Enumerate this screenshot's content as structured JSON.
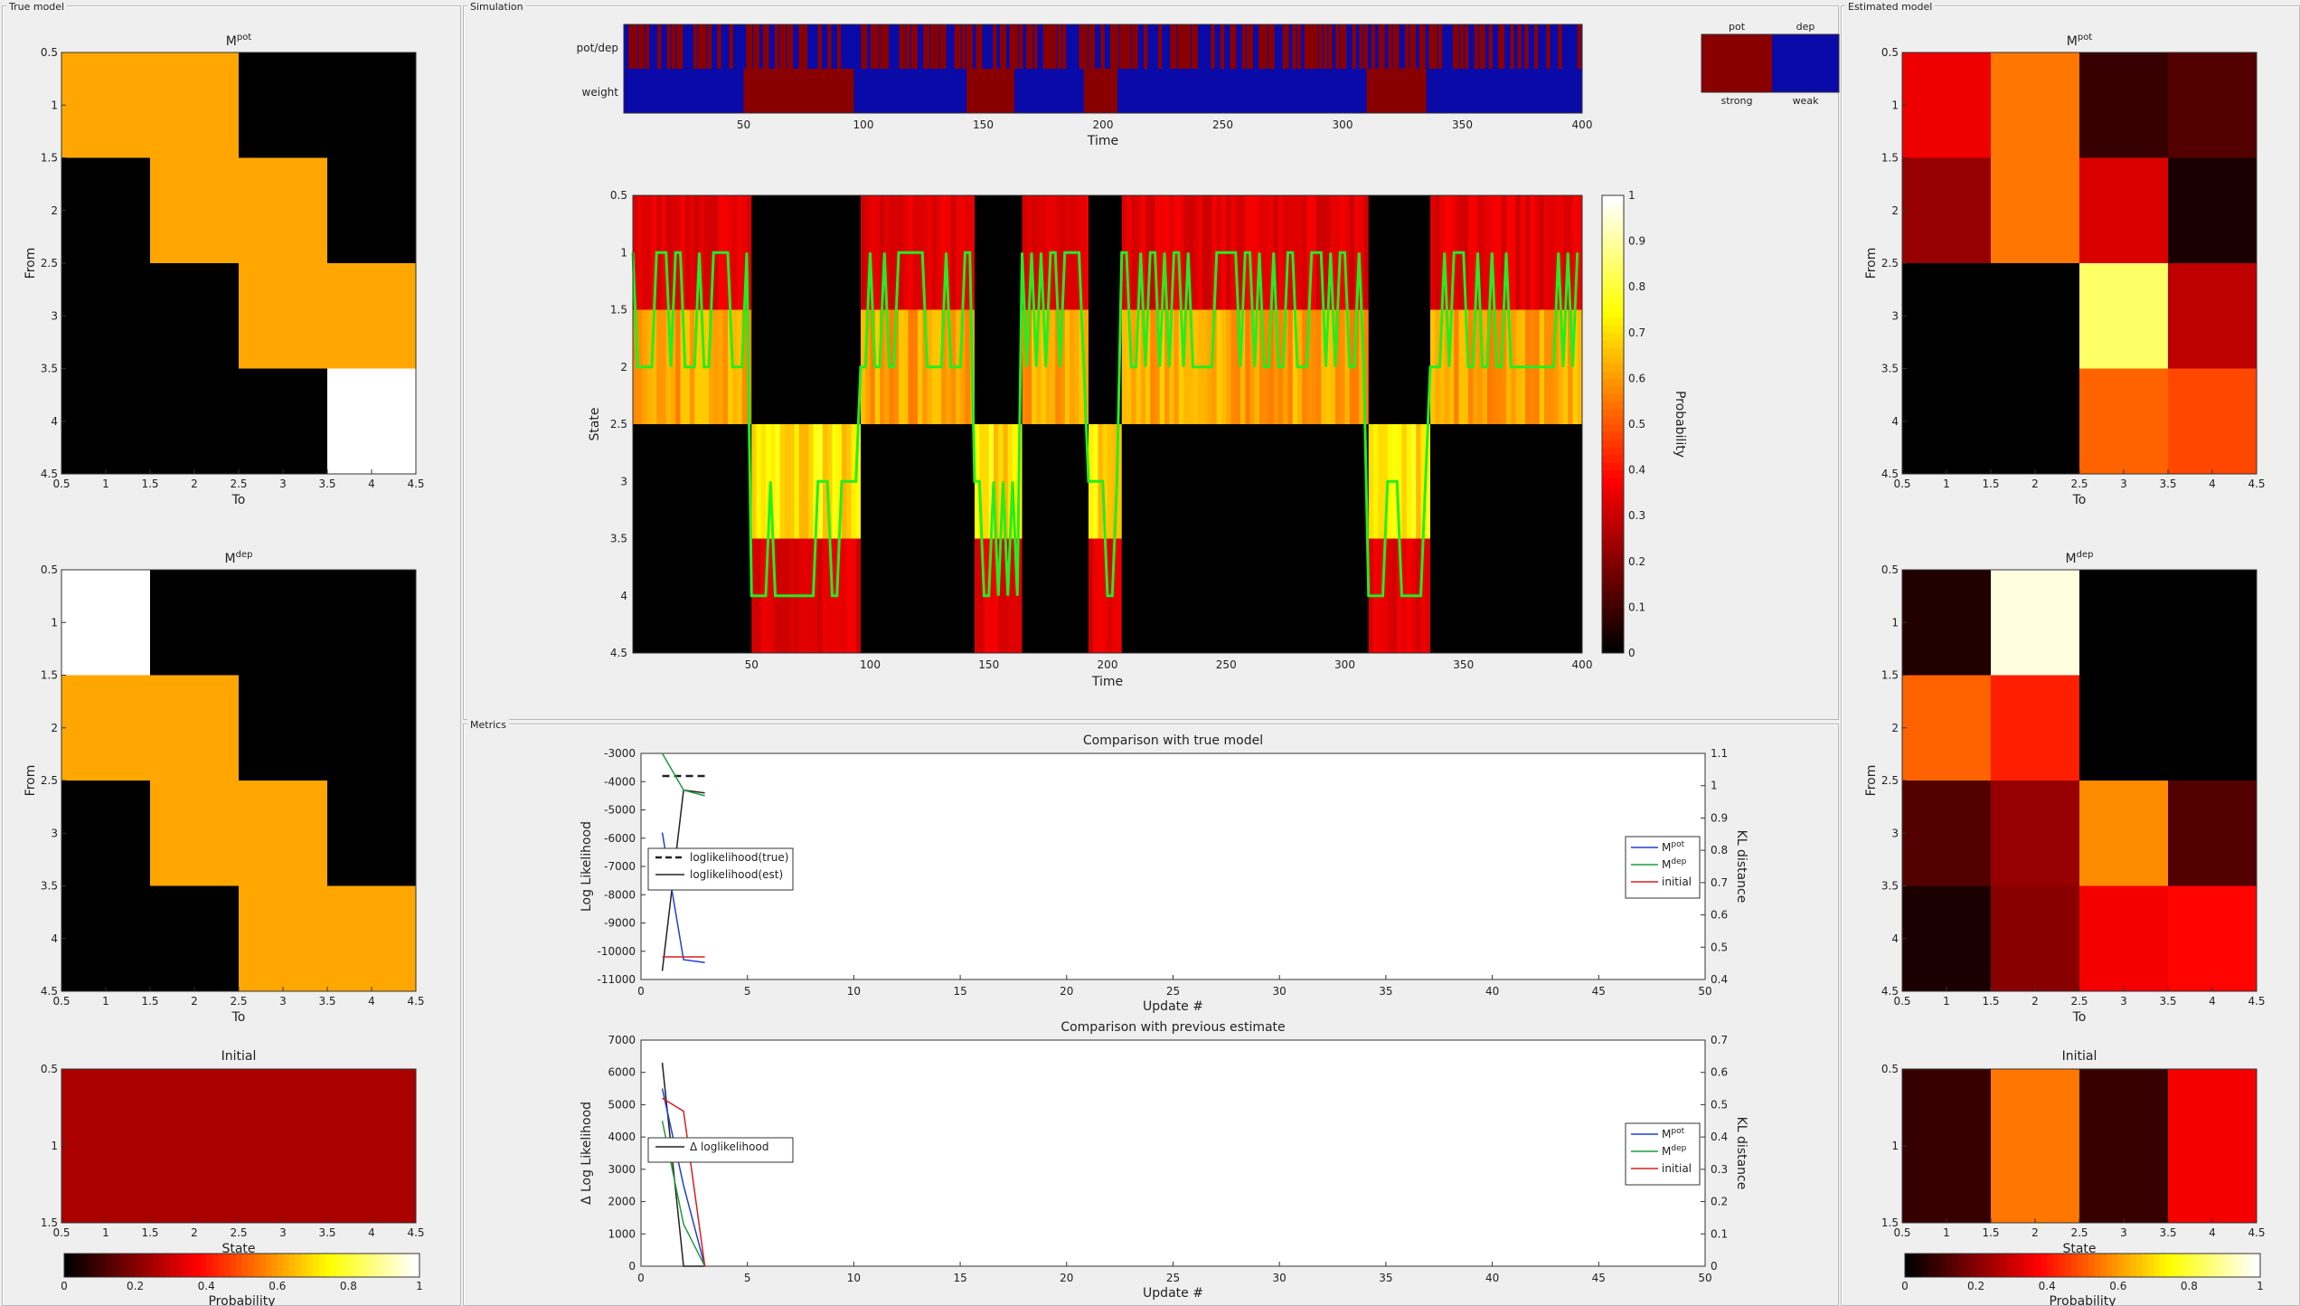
{
  "panels": {
    "true_model": "True model",
    "simulation": "Simulation",
    "metrics": "Metrics",
    "estimated_model": "Estimated model"
  },
  "colors": {
    "frame": "#b9b9b9",
    "bg": "#efefef",
    "weak": "#0a0aa8",
    "strong": "#8a0000",
    "path": "#22ee22"
  },
  "labels": {
    "to": "To",
    "from": "From",
    "state": "State",
    "time": "Time",
    "probability": "Probability",
    "update": "Update #",
    "pot_dep": "pot/dep",
    "weight": "weight",
    "pot": "pot",
    "dep": "dep",
    "strong": "strong",
    "weak": "weak"
  },
  "true_model": {
    "m_pot": {
      "title_base": "M",
      "title_sup": "pot",
      "values": [
        [
          0.62,
          0.62,
          0,
          0
        ],
        [
          0,
          0.62,
          0.62,
          0
        ],
        [
          0,
          0,
          0.62,
          0.62
        ],
        [
          0,
          0,
          0,
          1
        ]
      ]
    },
    "m_dep": {
      "title_base": "M",
      "title_sup": "dep",
      "values": [
        [
          1,
          0,
          0,
          0
        ],
        [
          0.62,
          0.62,
          0,
          0
        ],
        [
          0,
          0.62,
          0.62,
          0
        ],
        [
          0,
          0,
          0.62,
          0.62
        ]
      ]
    },
    "initial": {
      "title": "Initial",
      "values": [
        [
          0.25,
          0.25,
          0.25,
          0.25
        ]
      ]
    }
  },
  "estimated_model": {
    "m_pot": {
      "title_base": "M",
      "title_sup": "pot",
      "values": [
        [
          0.35,
          0.55,
          0.08,
          0.12
        ],
        [
          0.22,
          0.55,
          0.32,
          0.04
        ],
        [
          0,
          0,
          0.85,
          0.28
        ],
        [
          0,
          0,
          0.52,
          0.48
        ]
      ]
    },
    "m_dep": {
      "title_base": "M",
      "title_sup": "dep",
      "values": [
        [
          0.05,
          0.97,
          0,
          0
        ],
        [
          0.52,
          0.42,
          0,
          0
        ],
        [
          0.12,
          0.22,
          0.58,
          0.12
        ],
        [
          0.04,
          0.2,
          0.36,
          0.38
        ]
      ]
    },
    "initial": {
      "title": "Initial",
      "values": [
        [
          0.08,
          0.55,
          0.08,
          0.36
        ]
      ]
    }
  },
  "heatmap_axes": {
    "x_ticks": [
      "0.5",
      "1",
      "1.5",
      "2",
      "2.5",
      "3",
      "3.5",
      "4",
      "4.5"
    ],
    "y_ticks": [
      "0.5",
      "1",
      "1.5",
      "2",
      "2.5",
      "3",
      "3.5",
      "4",
      "4.5"
    ],
    "y_ticks_initial": [
      "0.5",
      "1",
      "1.5"
    ]
  },
  "colorbar": {
    "ticks": [
      "0",
      "0.2",
      "0.4",
      "0.6",
      "0.8",
      "1"
    ],
    "label": "Probability"
  },
  "sim_colorbar": {
    "ticks": [
      "0",
      "0.1",
      "0.2",
      "0.3",
      "0.4",
      "0.5",
      "0.6",
      "0.7",
      "0.8",
      "0.9",
      "1"
    ],
    "label": "Probability"
  },
  "simulation": {
    "time_ticks": [
      "50",
      "100",
      "150",
      "200",
      "250",
      "300",
      "350",
      "400"
    ],
    "state_ticks": [
      "0.5",
      "1",
      "1.5",
      "2",
      "2.5",
      "3",
      "3.5",
      "4",
      "4.5"
    ],
    "plasticity_segments": [
      [
        0,
        50,
        0
      ],
      [
        50,
        96,
        1
      ],
      [
        96,
        109,
        0
      ],
      [
        109,
        143,
        0
      ],
      [
        143,
        163,
        1
      ],
      [
        163,
        192,
        0
      ],
      [
        192,
        206,
        1
      ],
      [
        206,
        310,
        0
      ],
      [
        310,
        335,
        1
      ],
      [
        335,
        400,
        0
      ]
    ],
    "state_segments": [
      [
        0,
        50,
        2
      ],
      [
        50,
        96,
        3
      ],
      [
        96,
        109,
        2
      ],
      [
        109,
        143,
        1
      ],
      [
        143,
        163,
        3
      ],
      [
        163,
        192,
        2
      ],
      [
        192,
        206,
        3
      ],
      [
        206,
        236,
        2
      ],
      [
        236,
        256,
        1
      ],
      [
        256,
        310,
        2
      ],
      [
        310,
        335,
        3
      ],
      [
        335,
        400,
        2
      ]
    ]
  },
  "metrics": {
    "true_model_chart": {
      "title": "Comparison with true model",
      "ylabel_left": "Log Likelihood",
      "ylabel_right": "KL distance",
      "xlabel": "Update #",
      "y_left_ticks": [
        "-3000",
        "-4000",
        "-5000",
        "-6000",
        "-7000",
        "-8000",
        "-9000",
        "-10000",
        "-11000"
      ],
      "y_right_ticks": [
        "1.1",
        "1",
        "0.9",
        "0.8",
        "0.7",
        "0.6",
        "0.5",
        "0.4"
      ],
      "x_ticks": [
        "0",
        "5",
        "10",
        "15",
        "20",
        "25",
        "30",
        "35",
        "40",
        "45",
        "50"
      ],
      "legend_left": [
        "loglikelihood(true)",
        "loglikelihood(est)"
      ],
      "legend_right": [
        {
          "base": "M",
          "sup": "pot"
        },
        {
          "base": "M",
          "sup": "dep"
        },
        {
          "base": "initial",
          "sup": ""
        }
      ]
    },
    "previous_chart": {
      "title": "Comparison with previous estimate",
      "ylabel_left": "Δ Log Likelihood",
      "ylabel_right": "KL distance",
      "xlabel": "Update #",
      "y_left_ticks": [
        "7000",
        "6000",
        "5000",
        "4000",
        "3000",
        "2000",
        "1000",
        "0"
      ],
      "y_right_ticks": [
        "0.7",
        "0.6",
        "0.5",
        "0.4",
        "0.3",
        "0.2",
        "0.1",
        "0"
      ],
      "x_ticks": [
        "0",
        "5",
        "10",
        "15",
        "20",
        "25",
        "30",
        "35",
        "40",
        "45",
        "50"
      ],
      "legend_left": [
        "Δ loglikelihood"
      ],
      "legend_right": [
        {
          "base": "M",
          "sup": "pot"
        },
        {
          "base": "M",
          "sup": "dep"
        },
        {
          "base": "initial",
          "sup": ""
        }
      ]
    }
  },
  "chart_data": [
    {
      "type": "line",
      "title": "Comparison with true model",
      "xlabel": "Update #",
      "ylabel": "Log Likelihood",
      "xlim": [
        0,
        50
      ],
      "ylim": [
        -11000,
        -3000
      ],
      "series": [
        {
          "name": "loglikelihood(true)",
          "axis": "left",
          "x": [
            1,
            2,
            3
          ],
          "y": [
            -3800,
            -3800,
            -3800
          ]
        },
        {
          "name": "loglikelihood(est)",
          "axis": "left",
          "x": [
            1,
            2,
            3
          ],
          "y": [
            -10700,
            -4300,
            -4400
          ]
        },
        {
          "name": "Mpot",
          "axis": "right",
          "x": [
            1,
            2,
            3
          ],
          "y": [
            0.82,
            0.37,
            0.36
          ]
        },
        {
          "name": "Mdep",
          "axis": "right",
          "x": [
            1,
            2,
            3
          ],
          "y": [
            1.1,
            0.97,
            0.95
          ]
        },
        {
          "name": "initial",
          "axis": "right",
          "x": [
            1,
            2,
            3
          ],
          "y": [
            0.38,
            0.38,
            0.38
          ]
        }
      ]
    },
    {
      "type": "line",
      "title": "Comparison with previous estimate",
      "xlabel": "Update #",
      "ylabel": "Δ Log Likelihood",
      "xlim": [
        0,
        50
      ],
      "ylim": [
        0,
        7000
      ],
      "series": [
        {
          "name": "Δ loglikelihood",
          "axis": "left",
          "x": [
            1,
            2,
            3
          ],
          "y": [
            6300,
            0,
            0
          ]
        },
        {
          "name": "Mpot",
          "axis": "right",
          "x": [
            1,
            2,
            3
          ],
          "y": [
            0.55,
            0.25,
            0
          ]
        },
        {
          "name": "Mdep",
          "axis": "right",
          "x": [
            1,
            2,
            3
          ],
          "y": [
            0.45,
            0.13,
            0
          ]
        },
        {
          "name": "initial",
          "axis": "right",
          "x": [
            1,
            2,
            3
          ],
          "y": [
            0.52,
            0.48,
            0
          ]
        }
      ]
    }
  ]
}
